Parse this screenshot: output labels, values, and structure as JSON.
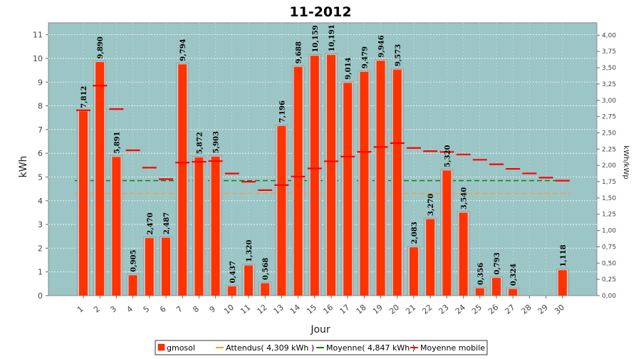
{
  "chart_data": {
    "type": "bar",
    "title": "11-2012",
    "xlabel": "Jour",
    "ylabel": "kWh",
    "y2label": "kWh/kWp",
    "ylim": [
      0,
      11.5
    ],
    "y2lim": [
      0,
      4.19
    ],
    "y_ticks": [
      "0",
      "1",
      "2",
      "3",
      "4",
      "5",
      "6",
      "7",
      "8",
      "9",
      "10",
      "11"
    ],
    "y2_ticks": [
      "0,00",
      "0,25",
      "0,50",
      "0,75",
      "1,00",
      "1,25",
      "1,50",
      "1,75",
      "2,00",
      "2,25",
      "2,50",
      "2,75",
      "3,00",
      "3,25",
      "3,50",
      "3,75",
      "4,00"
    ],
    "grid": true,
    "legend_position": "bottom",
    "categories": [
      "1",
      "2",
      "3",
      "4",
      "5",
      "6",
      "7",
      "8",
      "9",
      "10",
      "11",
      "12",
      "13",
      "14",
      "15",
      "16",
      "17",
      "18",
      "19",
      "20",
      "21",
      "22",
      "23",
      "24",
      "25",
      "26",
      "27",
      "28",
      "29",
      "30"
    ],
    "series": [
      {
        "name": "gmosol",
        "type": "bar",
        "color": "#ff3300",
        "values": [
          7.812,
          9.89,
          5.891,
          0.905,
          2.47,
          2.487,
          9.794,
          5.872,
          5.903,
          0.437,
          1.32,
          0.568,
          7.196,
          9.688,
          10.159,
          10.191,
          9.014,
          9.479,
          9.946,
          9.573,
          2.083,
          3.27,
          5.32,
          3.54,
          0.356,
          0.793,
          0.324,
          0,
          0,
          1.118
        ],
        "labels": [
          "7,812",
          "9,890",
          "5,891",
          "0,905",
          "2,470",
          "2,487",
          "9,794",
          "5,872",
          "5,903",
          "0,437",
          "1,320",
          "0,568",
          "7,196",
          "9,688",
          "10,159",
          "10,191",
          "9,014",
          "9,479",
          "9,946",
          "9,573",
          "2,083",
          "3,270",
          "5,320",
          "3,540",
          "0,356",
          "0,793",
          "0,324",
          "",
          "",
          "1,118"
        ]
      },
      {
        "name": "Attendus( 4,309 kWh )",
        "type": "hline",
        "color": "#ff9933",
        "value": 4.309
      },
      {
        "name": "Moyenne( 4,847 kWh )",
        "type": "hline",
        "color": "#008000",
        "value": 4.847
      },
      {
        "name": "Moyenne mobile",
        "type": "step",
        "color": "#ff0000",
        "values": [
          7.812,
          8.851,
          7.864,
          6.125,
          5.394,
          4.91,
          5.608,
          5.641,
          5.67,
          5.146,
          4.798,
          4.446,
          4.658,
          5.017,
          5.36,
          5.662,
          5.859,
          6.06,
          6.264,
          6.429,
          6.222,
          6.088,
          6.055,
          5.95,
          5.726,
          5.536,
          5.343,
          5.152,
          4.974,
          4.846
        ]
      }
    ]
  }
}
